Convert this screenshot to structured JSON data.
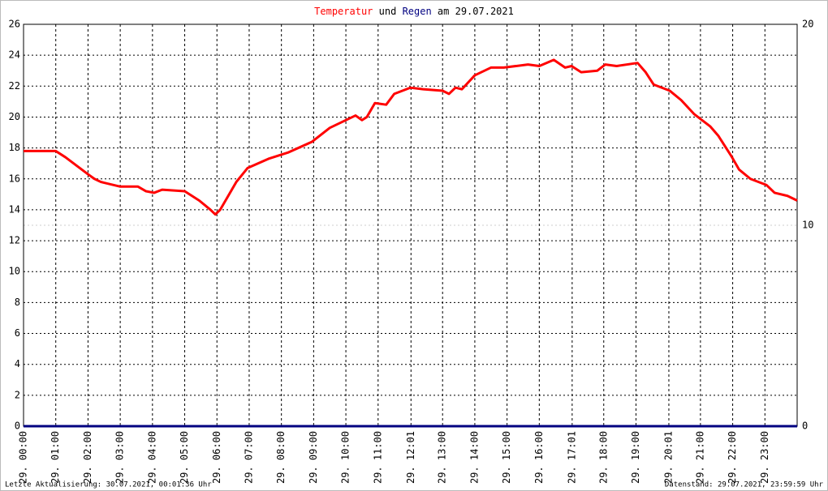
{
  "chart_data": {
    "type": "line",
    "title": {
      "connector": "und",
      "suffix": "am 29.07.2021"
    },
    "xlim": [
      0,
      24
    ],
    "xticks": [
      {
        "value": 0,
        "label": "29. 00:00"
      },
      {
        "value": 1,
        "label": "29. 01:00"
      },
      {
        "value": 2,
        "label": "29. 02:00"
      },
      {
        "value": 3,
        "label": "29. 03:00"
      },
      {
        "value": 4,
        "label": "29. 04:00"
      },
      {
        "value": 5,
        "label": "29. 05:00"
      },
      {
        "value": 6,
        "label": "29. 06:00"
      },
      {
        "value": 7,
        "label": "29. 07:00"
      },
      {
        "value": 8,
        "label": "29. 08:00"
      },
      {
        "value": 9,
        "label": "29. 09:00"
      },
      {
        "value": 10,
        "label": "29. 10:00"
      },
      {
        "value": 11,
        "label": "29. 11:00"
      },
      {
        "value": 12.02,
        "label": "29. 12:01"
      },
      {
        "value": 13,
        "label": "29. 13:00"
      },
      {
        "value": 14,
        "label": "29. 14:00"
      },
      {
        "value": 15,
        "label": "29. 15:00"
      },
      {
        "value": 16,
        "label": "29. 16:00"
      },
      {
        "value": 17.02,
        "label": "29. 17:01"
      },
      {
        "value": 18,
        "label": "29. 18:00"
      },
      {
        "value": 19,
        "label": "29. 19:00"
      },
      {
        "value": 20.02,
        "label": "29. 20:01"
      },
      {
        "value": 21,
        "label": "29. 21:00"
      },
      {
        "value": 22,
        "label": "29. 22:00"
      },
      {
        "value": 23,
        "label": "29. 23:00"
      }
    ],
    "ylim": [
      0,
      26
    ],
    "yticks": [
      0,
      2,
      4,
      6,
      8,
      10,
      12,
      14,
      16,
      18,
      20,
      22,
      24,
      26
    ],
    "y2lim": [
      0,
      20
    ],
    "y2ticks": [
      0,
      10,
      20
    ],
    "grid": true,
    "series": [
      {
        "name": "Temperatur",
        "color": "#ff0000",
        "x": [
          0,
          1,
          1.3,
          2,
          2.2,
          2.4,
          3,
          3.55,
          3.8,
          4.05,
          4.3,
          5,
          5.45,
          5.8,
          5.95,
          6.1,
          6.6,
          6.95,
          7.6,
          8.2,
          8.95,
          9.5,
          9.9,
          10.3,
          10.5,
          10.65,
          10.9,
          11.25,
          11.5,
          12,
          12.4,
          13,
          13.2,
          13.4,
          13.6,
          14,
          14.5,
          14.9,
          15.65,
          16,
          16.45,
          16.8,
          17,
          17.3,
          17.8,
          18.05,
          18.4,
          19.05,
          19.3,
          19.55,
          20.05,
          20.4,
          20.8,
          21.3,
          21.55,
          21.95,
          22.2,
          22.55,
          23.05,
          23.3,
          23.7,
          24
        ],
        "values": [
          17.8,
          17.8,
          17.4,
          16.3,
          16.0,
          15.8,
          15.5,
          15.5,
          15.2,
          15.1,
          15.3,
          15.2,
          14.6,
          14.0,
          13.7,
          14.0,
          15.8,
          16.7,
          17.3,
          17.7,
          18.4,
          19.3,
          19.7,
          20.1,
          19.8,
          20.0,
          20.9,
          20.8,
          21.5,
          21.9,
          21.8,
          21.7,
          21.5,
          21.9,
          21.8,
          22.7,
          23.2,
          23.2,
          23.4,
          23.3,
          23.7,
          23.2,
          23.3,
          22.9,
          23.0,
          23.4,
          23.3,
          23.5,
          22.9,
          22.1,
          21.7,
          21.1,
          20.2,
          19.4,
          18.8,
          17.5,
          16.6,
          16.0,
          15.6,
          15.1,
          14.9,
          14.6
        ]
      },
      {
        "name": "Regen",
        "color": "#000080",
        "axis": "y2",
        "x": [
          0,
          24
        ],
        "values": [
          0,
          0
        ]
      }
    ],
    "annotations": {
      "left": "Letzte Aktualisierung: 30.07.2021, 00:01:36 Uhr",
      "right": "Datenstand: 29.07.2021, 23:59:59 Uhr"
    }
  }
}
